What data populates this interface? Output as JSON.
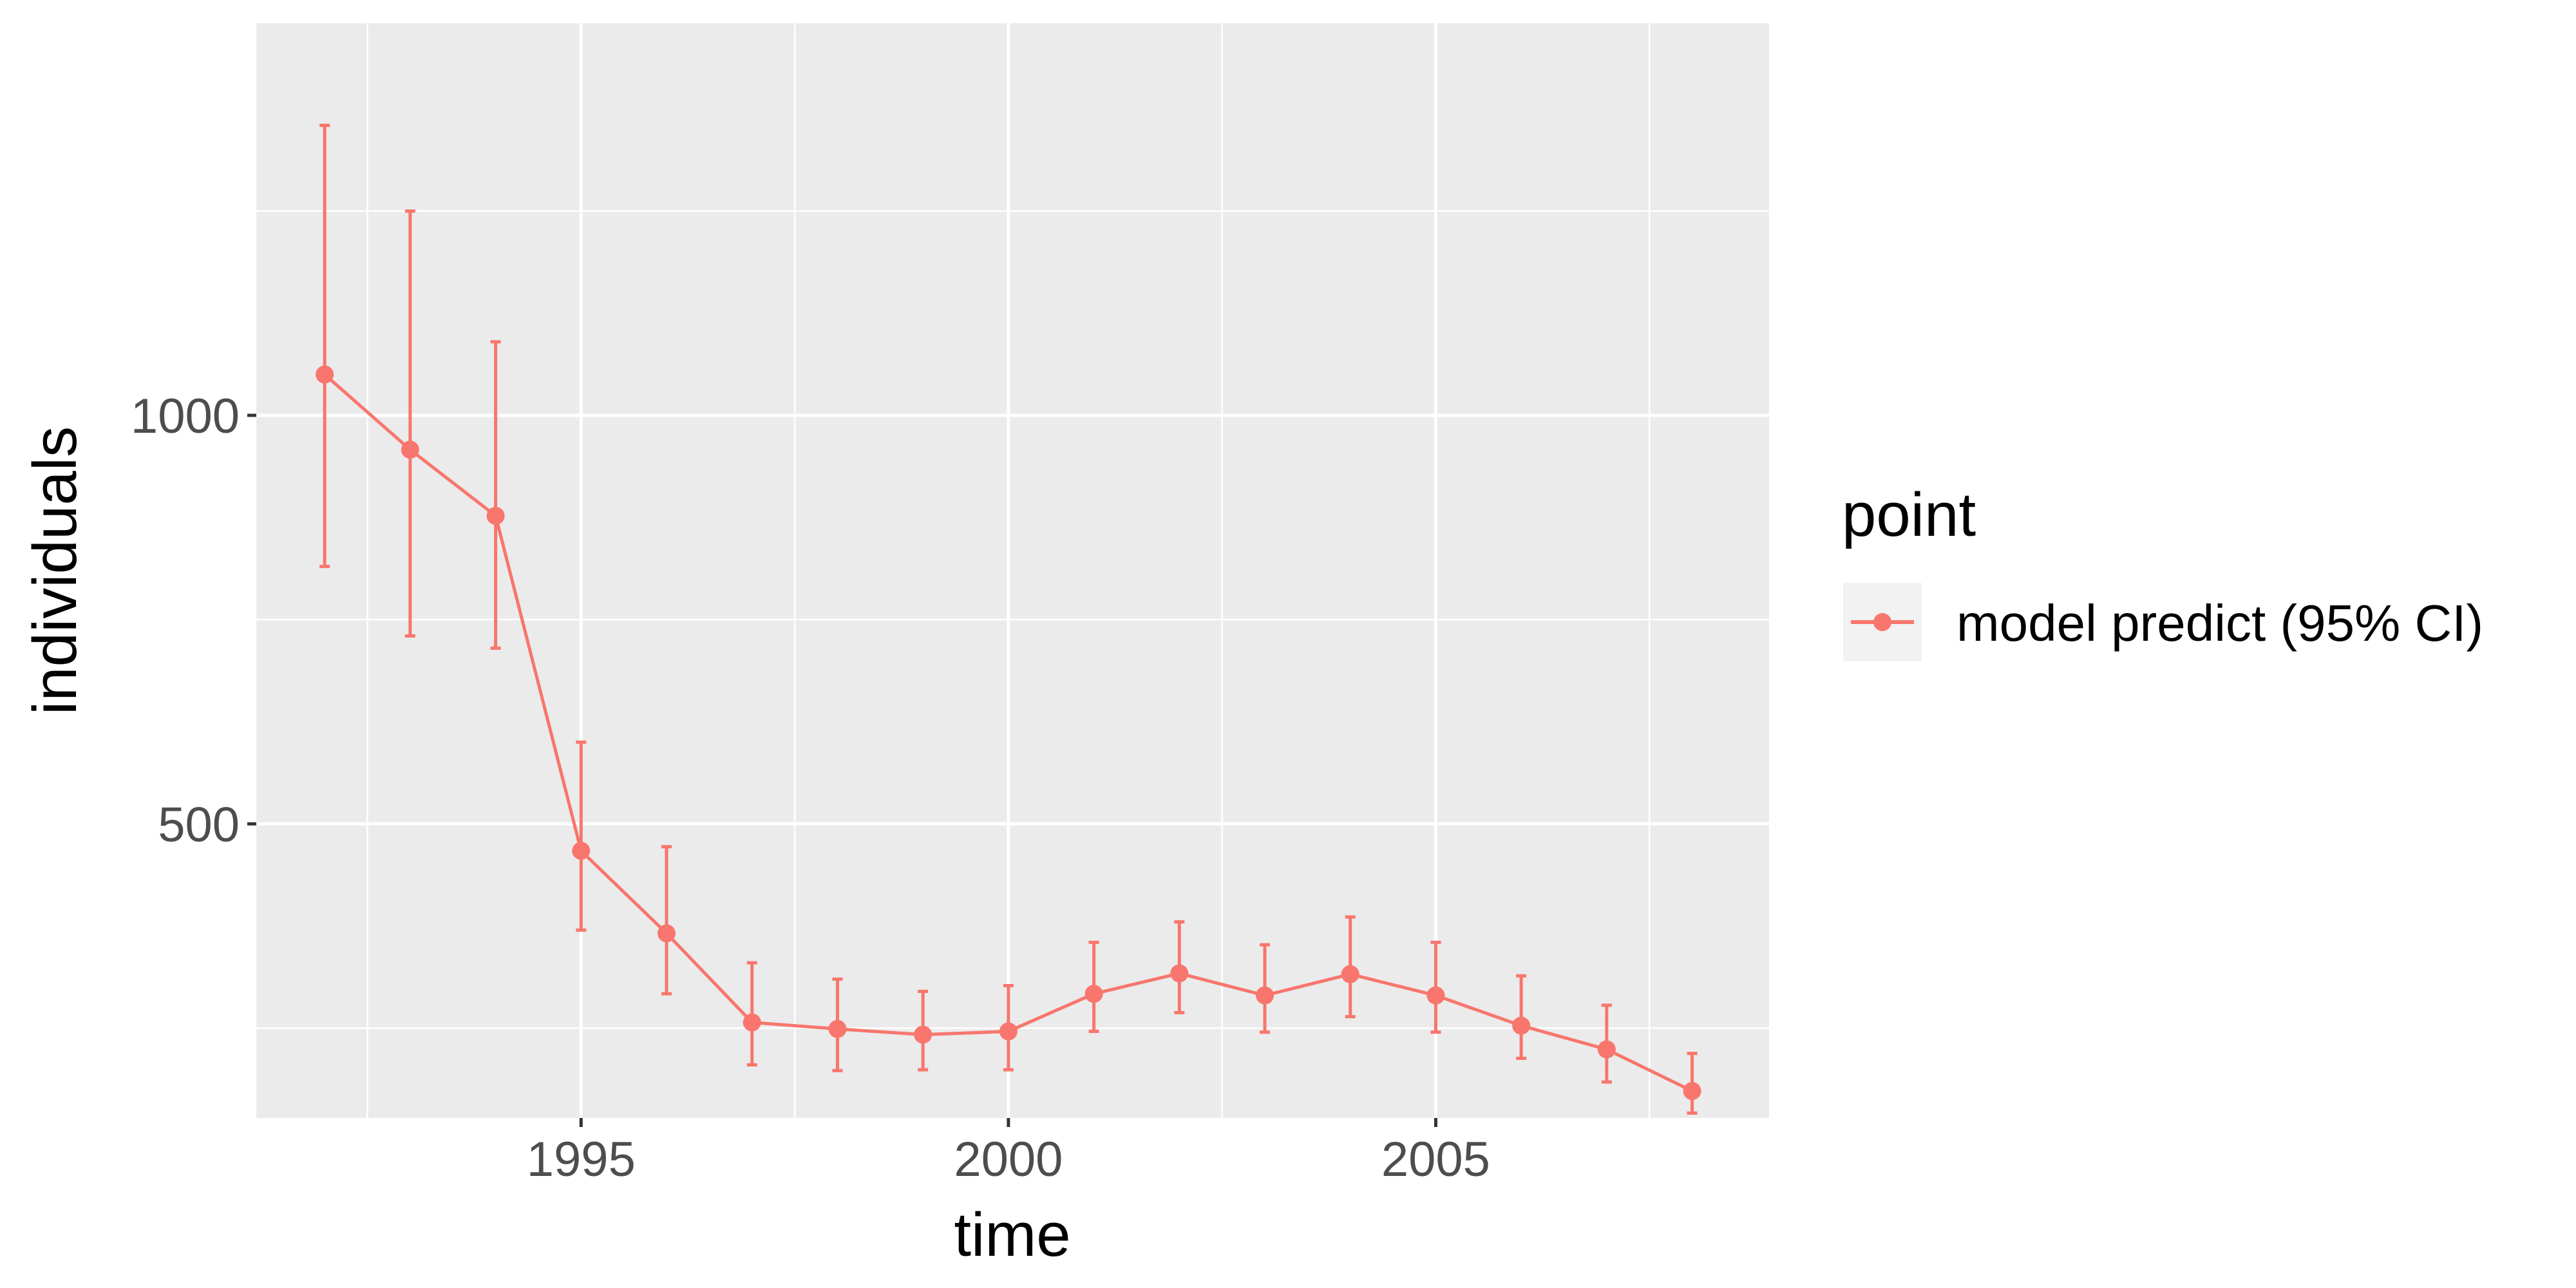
{
  "chart_data": {
    "type": "line",
    "xlabel": "time",
    "ylabel": "individuals",
    "x_ticks": [
      1995,
      2000,
      2005
    ],
    "y_ticks": [
      500,
      1000
    ],
    "xlim": [
      1991.2,
      2008.9
    ],
    "ylim": [
      140,
      1480
    ],
    "grid": true,
    "legend": {
      "title": "point",
      "placement": "right",
      "entries": [
        "model predict (95% CI)"
      ]
    },
    "colors": {
      "series": "#f8766d",
      "panel": "#ebebeb",
      "grid": "#ffffff"
    },
    "series": [
      {
        "name": "model predict (95% CI)",
        "x": [
          1992,
          1993,
          1994,
          1995,
          1996,
          1997,
          1998,
          1999,
          2000,
          2001,
          2002,
          2003,
          2004,
          2005,
          2006,
          2007,
          2008
        ],
        "y": [
          1050,
          958,
          877,
          467,
          366,
          257,
          249,
          242,
          246,
          292,
          317,
          290,
          316,
          290,
          253,
          224,
          173
        ],
        "lower": [
          815,
          730,
          715,
          370,
          292,
          205,
          198,
          199,
          199,
          246,
          269,
          245,
          264,
          245,
          213,
          184,
          146
        ],
        "upper": [
          1355,
          1250,
          1090,
          600,
          472,
          330,
          310,
          295,
          302,
          355,
          380,
          352,
          386,
          355,
          314,
          278,
          219
        ]
      }
    ]
  }
}
